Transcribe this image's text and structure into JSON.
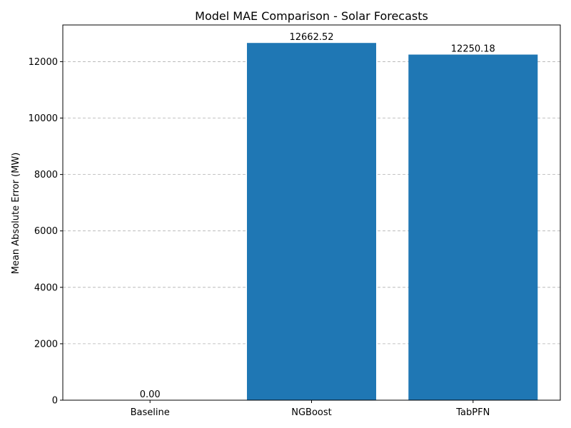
{
  "chart_data": {
    "type": "bar",
    "title": "Model MAE Comparison - Solar Forecasts",
    "xlabel": "",
    "ylabel": "Mean Absolute Error (MW)",
    "categories": [
      "Baseline",
      "NGBoost",
      "TabPFN"
    ],
    "values": [
      0.0,
      12662.52,
      12250.18
    ],
    "value_labels": [
      "0.00",
      "12662.52",
      "12250.18"
    ],
    "yticks": [
      0,
      2000,
      4000,
      6000,
      8000,
      10000,
      12000
    ],
    "ylim": [
      0,
      13300
    ],
    "grid": "y-dashed",
    "bar_color": "#1f77b4"
  }
}
